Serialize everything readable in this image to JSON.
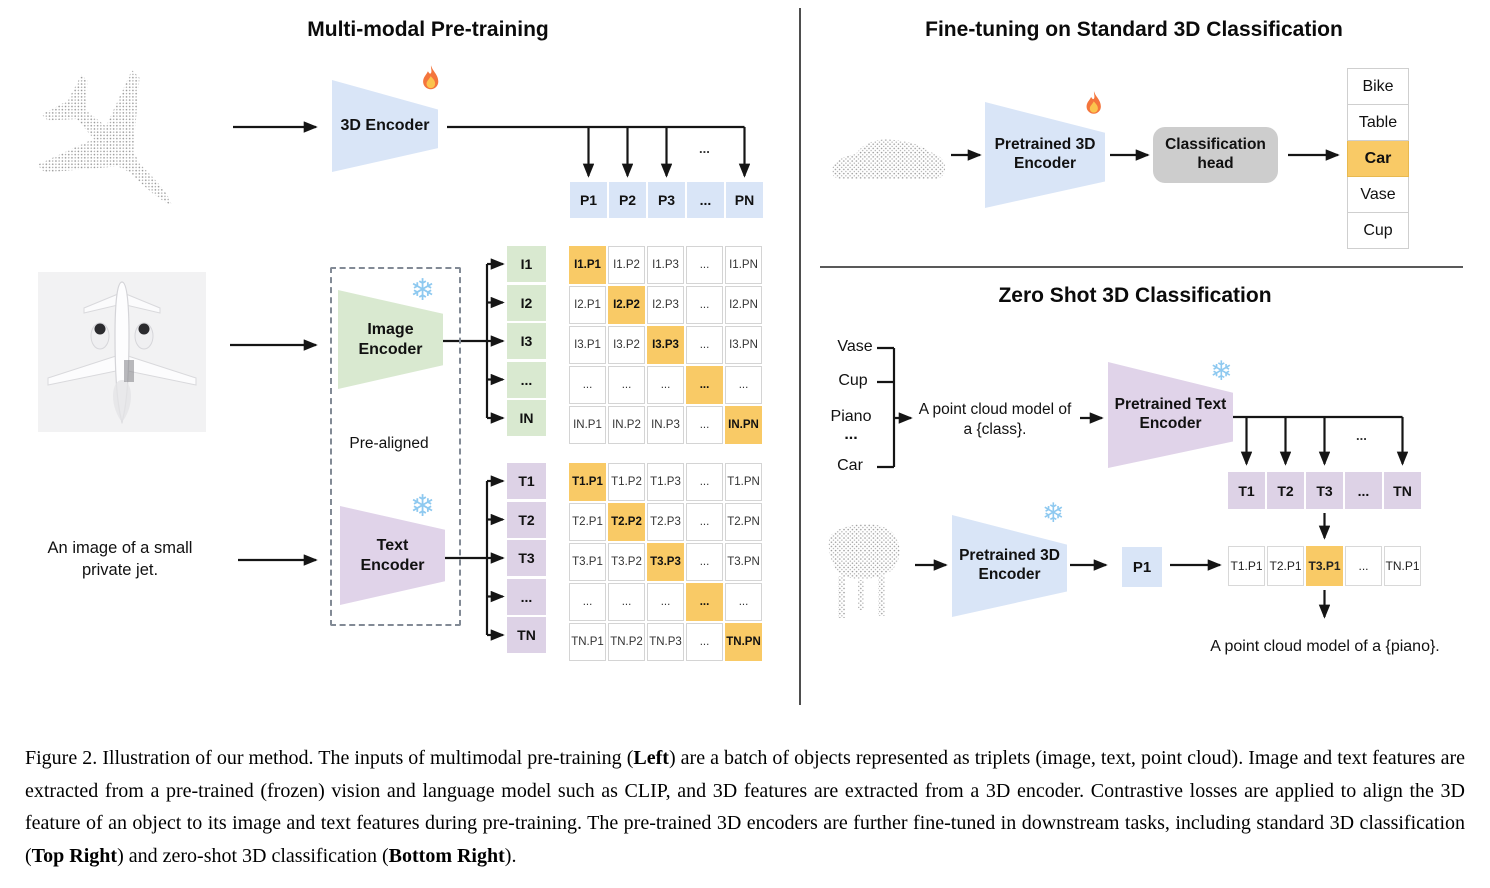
{
  "pretrain": {
    "title": "Multi-modal Pre-training",
    "encoder_3d_label": "3D Encoder",
    "encoder_3d_icon": "fire",
    "image_encoder_label": "Image\nEncoder",
    "image_encoder_icon": "snowflake",
    "text_encoder_label": "Text\nEncoder",
    "text_encoder_icon": "snowflake",
    "pre_aligned_label": "Pre-aligned",
    "text_input": "An image of a small\nprivate jet.",
    "p_row": [
      "P1",
      "P2",
      "P3",
      "...",
      "PN"
    ],
    "p_fan_ellipsis": "...",
    "image_labels": [
      "I1",
      "I2",
      "I3",
      "...",
      "IN"
    ],
    "text_labels": [
      "T1",
      "T2",
      "T3",
      "...",
      "TN"
    ],
    "image_matrix": [
      [
        "I1.P1",
        "I1.P2",
        "I1.P3",
        "...",
        "I1.PN"
      ],
      [
        "I2.P1",
        "I2.P2",
        "I2.P3",
        "...",
        "I2.PN"
      ],
      [
        "I3.P1",
        "I3.P2",
        "I3.P3",
        "...",
        "I3.PN"
      ],
      [
        "...",
        "...",
        "...",
        "...",
        "..."
      ],
      [
        "IN.P1",
        "IN.P2",
        "IN.P3",
        "...",
        "IN.PN"
      ]
    ],
    "text_matrix": [
      [
        "T1.P1",
        "T1.P2",
        "T1.P3",
        "...",
        "T1.PN"
      ],
      [
        "T2.P1",
        "T2.P2",
        "T2.P3",
        "...",
        "T2.PN"
      ],
      [
        "T3.P1",
        "T3.P2",
        "T3.P3",
        "...",
        "T3.PN"
      ],
      [
        "...",
        "...",
        "...",
        "...",
        "..."
      ],
      [
        "TN.P1",
        "TN.P2",
        "TN.P3",
        "...",
        "TN.PN"
      ]
    ]
  },
  "finetune": {
    "title": "Fine-tuning on Standard 3D Classification",
    "encoder_label": "Pretrained 3D\nEncoder",
    "encoder_icon": "fire",
    "class_head_label": "Classification\nhead",
    "classes": [
      "Bike",
      "Table",
      "Car",
      "Vase",
      "Cup"
    ],
    "predicted": "Car"
  },
  "zeroshot": {
    "title": "Zero Shot 3D Classification",
    "classes": [
      "Vase",
      "Cup",
      "Piano",
      "...",
      "Car"
    ],
    "prompt": "A point cloud model of\na {class}.",
    "text_encoder_label": "Pretrained Text\nEncoder",
    "text_encoder_icon": "snowflake",
    "encoder_3d_label": "Pretrained 3D\nEncoder",
    "encoder_3d_icon": "snowflake",
    "t_row": [
      "T1",
      "T2",
      "T3",
      "...",
      "TN"
    ],
    "t_fan_ellipsis": "...",
    "p_cell": "P1",
    "result_row": [
      "T1.P1",
      "T2.P1",
      "T3.P1",
      "...",
      "TN.P1"
    ],
    "highlighted_result": "T3.P1",
    "output_text": "A point cloud model of a {piano}."
  },
  "colors": {
    "blue": "#d9e5f7",
    "green": "#d9e9d0",
    "purple": "#e0d3e9",
    "highlight_orange": "#f9ca66",
    "head_gray": "#cdcdcd"
  },
  "caption": {
    "segments": [
      {
        "text": "Figure 2. Illustration of our method. The inputs of multimodal pre-training ("
      },
      {
        "text": "Left",
        "bold": true
      },
      {
        "text": ") are a batch of objects represented as triplets (image, text, point cloud). Image and text features are extracted from a pre-trained (frozen) vision and language model such as CLIP, and 3D features are extracted from a 3D encoder. Contrastive losses are applied to align the 3D feature of an object to its image and text features during pre-training. The pre-trained 3D encoders are further fine-tuned in downstream tasks, including standard 3D classification ("
      },
      {
        "text": "Top Right",
        "bold": true
      },
      {
        "text": ") and zero-shot 3D classification ("
      },
      {
        "text": "Bottom Right",
        "bold": true
      },
      {
        "text": ")."
      }
    ]
  }
}
